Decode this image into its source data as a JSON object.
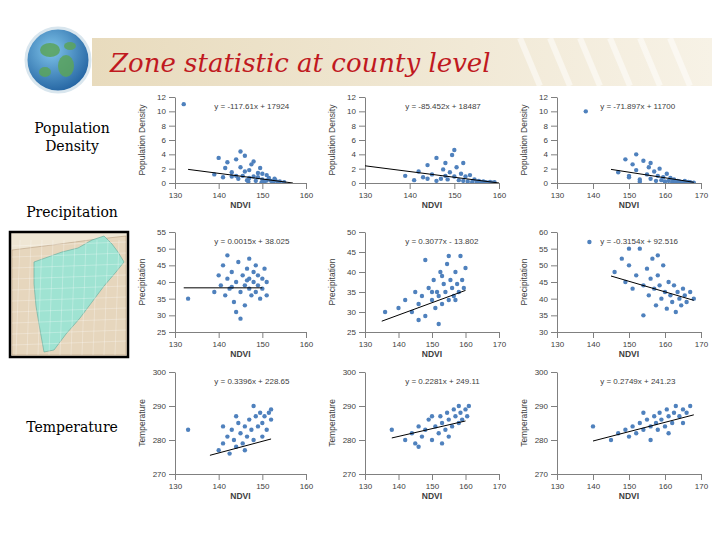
{
  "title": "Zone statistic at county level",
  "row_labels": [
    "Population Density",
    "Precipitation",
    "Temperature"
  ],
  "chart_data": [
    {
      "type": "scatter",
      "xlabel": "NDVI",
      "ylabel": "Population Density",
      "annotation": "y = -117.61x + 17924",
      "xlim": [
        130,
        160
      ],
      "xticks": [
        130,
        140,
        150,
        160
      ],
      "ylim": [
        0,
        12
      ],
      "yticks": [
        0,
        2,
        4,
        6,
        8,
        10,
        12
      ],
      "series": [
        {
          "type": "scatter",
          "color": "#4f81bd",
          "marker": "circle",
          "x": [
            132,
            139,
            141,
            142,
            143,
            144,
            144.5,
            145,
            145.5,
            146,
            146.5,
            147,
            147.5,
            148,
            148.5,
            149,
            149.5,
            150,
            150.5,
            151,
            151.5,
            152,
            152.5,
            153,
            153.5,
            154,
            155,
            143,
            146,
            147,
            149,
            150,
            141.5,
            140,
            148,
            145,
            144,
            151,
            152.8,
            146.8,
            149.8
          ],
          "values": [
            11,
            1.2,
            0.8,
            2.9,
            1.5,
            3.3,
            0.6,
            2.2,
            1,
            3.8,
            0.4,
            1.8,
            2.6,
            0.9,
            0.3,
            1.4,
            2.1,
            0.5,
            0.2,
            1.1,
            0.7,
            0.3,
            0.15,
            0.4,
            0.1,
            0.2,
            0.1,
            0.9,
            1.6,
            0.7,
            0.8,
            1.3,
            2.1,
            3.5,
            3,
            4.4,
            1,
            0.35,
            0.6,
            0.2,
            0.05
          ]
        },
        {
          "type": "line",
          "color": "#000000",
          "line_style": "solid",
          "x": [
            133,
            157
          ],
          "values": [
            1.9,
            0
          ]
        }
      ]
    },
    {
      "type": "scatter",
      "xlabel": "NDVI",
      "ylabel": "Population Density",
      "annotation": "y = -85.452x + 18487",
      "xlim": [
        130,
        160
      ],
      "xticks": [
        130,
        140,
        150,
        160
      ],
      "ylim": [
        0,
        12
      ],
      "yticks": [
        0,
        2,
        4,
        6,
        8,
        10,
        12
      ],
      "series": [
        {
          "type": "scatter",
          "color": "#4f81bd",
          "marker": "circle",
          "x": [
            139,
            141,
            143,
            144,
            145,
            146,
            147,
            147.5,
            148,
            148.5,
            149,
            149.5,
            150,
            150.5,
            151,
            151.5,
            152,
            152.5,
            153,
            153.5,
            154,
            154.5,
            155,
            155.5,
            156,
            156.5,
            157,
            157.5,
            158,
            158.5,
            159,
            150,
            146,
            144,
            142,
            152,
            148
          ],
          "values": [
            1,
            0.4,
            0.8,
            2.5,
            1.2,
            3.5,
            0.6,
            1.9,
            2.8,
            0.5,
            1.5,
            3.9,
            0.9,
            2.2,
            0.4,
            1.3,
            0.3,
            0.9,
            0.2,
            1.1,
            0.15,
            0.5,
            0.1,
            0.3,
            0.05,
            0.2,
            0.1,
            0.05,
            0.15,
            0.05,
            0.1,
            4.6,
            0.3,
            0.6,
            1.6,
            2.8,
            1
          ]
        },
        {
          "type": "line",
          "color": "#000000",
          "line_style": "solid",
          "x": [
            130,
            160
          ],
          "values": [
            2.4,
            0
          ]
        }
      ]
    },
    {
      "type": "scatter",
      "xlabel": "NDVI",
      "ylabel": "Population Density",
      "annotation": "y = -71.897x + 11700",
      "xlim": [
        130,
        170
      ],
      "xticks": [
        130,
        140,
        150,
        160,
        170
      ],
      "ylim": [
        0,
        12
      ],
      "yticks": [
        0,
        2,
        4,
        6,
        8,
        10,
        12
      ],
      "series": [
        {
          "type": "scatter",
          "color": "#4f81bd",
          "marker": "circle",
          "x": [
            147,
            149,
            150,
            151,
            152,
            153,
            154,
            155,
            155.5,
            156,
            157,
            157.5,
            158,
            158.5,
            159,
            159.5,
            160,
            160.5,
            161,
            161.5,
            162,
            162.5,
            163,
            163.5,
            164,
            164.5,
            165,
            165.5,
            166,
            166.5,
            167,
            168,
            152,
            156,
            150,
            153,
            138
          ],
          "values": [
            1.5,
            3.3,
            0.8,
            2.6,
            1.8,
            0.5,
            3.1,
            1.2,
            2.2,
            0.6,
            1.6,
            0.3,
            1,
            2,
            0.4,
            0.8,
            0.2,
            1.3,
            0.3,
            0.7,
            0.15,
            0.5,
            0.1,
            0.3,
            0.2,
            0.05,
            0.1,
            0.3,
            0.05,
            0.15,
            0.1,
            0.05,
            4,
            2.8,
            1,
            0.2,
            10
          ]
        },
        {
          "type": "line",
          "color": "#000000",
          "line_style": "solid",
          "x": [
            145,
            168
          ],
          "values": [
            1.9,
            0.1
          ]
        }
      ]
    },
    {
      "type": "scatter",
      "xlabel": "NDVI",
      "ylabel": "Precipitation",
      "annotation": "y = 0.0015x + 38.025",
      "xlim": [
        130,
        160
      ],
      "xticks": [
        130,
        140,
        150,
        160
      ],
      "ylim": [
        25,
        55
      ],
      "yticks": [
        25,
        30,
        35,
        40,
        45,
        50,
        55
      ],
      "series": [
        {
          "type": "scatter",
          "color": "#4f81bd",
          "marker": "circle",
          "x": [
            133,
            139,
            140,
            140.5,
            141,
            141.5,
            142,
            142.5,
            143,
            143.5,
            144,
            144.5,
            145,
            145.5,
            146,
            146,
            146.5,
            147,
            147,
            147.5,
            148,
            148,
            148.5,
            149,
            149,
            149.5,
            150,
            150,
            150.5,
            151,
            151,
            144,
            142,
            147,
            145,
            148.5,
            143,
            146.5
          ],
          "values": [
            35,
            37,
            42,
            39,
            45,
            36,
            41,
            38,
            43,
            34,
            40,
            46,
            37,
            42,
            39,
            33,
            44,
            38,
            41,
            36,
            43,
            40,
            37,
            42,
            39,
            35,
            41,
            38,
            44,
            40,
            36,
            31,
            48,
            47,
            29,
            45,
            38.5,
            40.5
          ]
        },
        {
          "type": "line",
          "color": "#000000",
          "line_style": "solid",
          "x": [
            132,
            150
          ],
          "values": [
            38.25,
            38.25
          ]
        }
      ]
    },
    {
      "type": "scatter",
      "xlabel": "NDVI",
      "ylabel": "Precipitation",
      "annotation": "y = 0.3077x - 13.802",
      "xlim": [
        130,
        170
      ],
      "xticks": [
        130,
        140,
        150,
        160,
        170
      ],
      "ylim": [
        25,
        50
      ],
      "yticks": [
        25,
        30,
        35,
        40,
        45,
        50
      ],
      "series": [
        {
          "type": "scatter",
          "color": "#4f81bd",
          "marker": "circle",
          "x": [
            136,
            140,
            142,
            144,
            145,
            146,
            147,
            148,
            149,
            150,
            150.5,
            151,
            151.5,
            152,
            152.5,
            153,
            153.5,
            154,
            154.5,
            155,
            155.5,
            156,
            156.5,
            157,
            157.5,
            158,
            158.5,
            159,
            159.5,
            160,
            148,
            152,
            155,
            146,
            150,
            157,
            153
          ],
          "values": [
            30,
            31,
            33,
            30,
            35,
            32,
            34,
            29,
            36,
            33,
            38,
            31,
            35,
            34,
            40,
            32,
            37,
            35,
            42,
            33,
            38,
            36,
            34,
            40,
            37,
            35,
            44,
            38,
            36,
            41,
            43,
            27,
            44,
            28,
            35,
            33,
            39
          ]
        },
        {
          "type": "line",
          "color": "#000000",
          "line_style": "solid",
          "x": [
            135,
            160
          ],
          "values": [
            27.7,
            35.4
          ]
        }
      ]
    },
    {
      "type": "scatter",
      "xlabel": "NDVI",
      "ylabel": "Precipitation",
      "annotation": "y = -0.3154x + 92.516",
      "xlim": [
        130,
        170
      ],
      "xticks": [
        130,
        140,
        150,
        160,
        170
      ],
      "ylim": [
        30,
        60
      ],
      "yticks": [
        30,
        35,
        40,
        45,
        50,
        55,
        60
      ],
      "series": [
        {
          "type": "scatter",
          "color": "#4f81bd",
          "marker": "circle",
          "x": [
            139,
            146,
            148,
            149,
            150,
            151,
            152,
            153,
            154,
            155,
            155.5,
            156,
            156.5,
            157,
            157.5,
            158,
            158.5,
            159,
            159.5,
            160,
            160.5,
            161,
            161.5,
            162,
            162.5,
            163,
            163.5,
            164,
            164.5,
            165,
            165.5,
            166,
            167,
            168,
            154,
            150,
            158
          ],
          "values": [
            57,
            48,
            52,
            45,
            50,
            43,
            47,
            55,
            44,
            49,
            41,
            46,
            52,
            43,
            38,
            47,
            44,
            40,
            50,
            42,
            37,
            45,
            41,
            39,
            44,
            36,
            42,
            40,
            38,
            43,
            41,
            39,
            42,
            40,
            35,
            55,
            53
          ]
        },
        {
          "type": "line",
          "color": "#000000",
          "line_style": "solid",
          "x": [
            145,
            168
          ],
          "values": [
            46.8,
            39.5
          ]
        }
      ]
    },
    {
      "type": "scatter",
      "xlabel": "NDVI",
      "ylabel": "Temperature",
      "annotation": "y = 0.3396x + 228.65",
      "xlim": [
        130,
        160
      ],
      "xticks": [
        130,
        140,
        150,
        160
      ],
      "ylim": [
        270,
        300
      ],
      "yticks": [
        270,
        280,
        290,
        300
      ],
      "series": [
        {
          "type": "scatter",
          "color": "#4f81bd",
          "marker": "circle",
          "x": [
            133,
            140,
            141,
            142,
            142.5,
            143,
            143.5,
            144,
            144.5,
            145,
            145.5,
            146,
            146.5,
            147,
            147.5,
            148,
            148.5,
            149,
            149.5,
            150,
            150.5,
            151,
            151.5,
            152,
            152,
            146,
            144,
            148,
            141,
            150
          ],
          "values": [
            283,
            277,
            279,
            281,
            276,
            283,
            280,
            278,
            285,
            282,
            279,
            284,
            281,
            286,
            283,
            280,
            287,
            284,
            288,
            285,
            287,
            283,
            288,
            286,
            289,
            277,
            287,
            290,
            284,
            281
          ]
        },
        {
          "type": "line",
          "color": "#000000",
          "line_style": "solid",
          "x": [
            138,
            152
          ],
          "values": [
            275.5,
            280.3
          ]
        }
      ]
    },
    {
      "type": "scatter",
      "xlabel": "NDVI",
      "ylabel": "Temperature",
      "annotation": "y = 0.2281x + 249.11",
      "xlim": [
        130,
        170
      ],
      "xticks": [
        130,
        140,
        150,
        160,
        170
      ],
      "ylim": [
        270,
        300
      ],
      "yticks": [
        270,
        280,
        290,
        300
      ],
      "series": [
        {
          "type": "scatter",
          "color": "#4f81bd",
          "marker": "circle",
          "x": [
            138,
            142,
            144,
            145,
            146,
            147,
            148,
            149,
            150,
            151,
            152,
            152.5,
            153,
            154,
            154.5,
            155,
            156,
            156.5,
            157,
            158,
            158.5,
            159,
            160,
            160.5,
            161,
            150,
            146,
            155,
            158,
            153
          ],
          "values": [
            283,
            280,
            282,
            279,
            284,
            281,
            283,
            286,
            280,
            284,
            282,
            287,
            285,
            283,
            288,
            286,
            284,
            289,
            287,
            285,
            288,
            286,
            289,
            287,
            290,
            287,
            278,
            281,
            290,
            279
          ]
        },
        {
          "type": "line",
          "color": "#000000",
          "line_style": "solid",
          "x": [
            138,
            160
          ],
          "values": [
            280.6,
            285.6
          ]
        }
      ]
    },
    {
      "type": "scatter",
      "xlabel": "NDVI",
      "ylabel": "Temperature",
      "annotation": "y = 0.2749x + 241.23",
      "xlim": [
        130,
        170
      ],
      "xticks": [
        130,
        140,
        150,
        160,
        170
      ],
      "ylim": [
        270,
        300
      ],
      "yticks": [
        270,
        280,
        290,
        300
      ],
      "series": [
        {
          "type": "scatter",
          "color": "#4f81bd",
          "marker": "circle",
          "x": [
            140,
            145,
            147,
            149,
            150,
            151,
            152,
            153,
            154,
            155,
            156,
            157,
            157.5,
            158,
            158.5,
            159,
            160,
            160.5,
            161,
            162,
            162.5,
            163,
            164,
            165,
            166,
            167,
            156,
            154,
            161,
            165
          ],
          "values": [
            284,
            280,
            282,
            283,
            281,
            284,
            282,
            285,
            283,
            286,
            284,
            287,
            285,
            283,
            288,
            286,
            284,
            289,
            287,
            285,
            288,
            290,
            287,
            289,
            288,
            290,
            280,
            288,
            282,
            285
          ]
        },
        {
          "type": "line",
          "color": "#000000",
          "line_style": "solid",
          "x": [
            140,
            168
          ],
          "values": [
            279.7,
            287.4
          ]
        }
      ]
    }
  ]
}
